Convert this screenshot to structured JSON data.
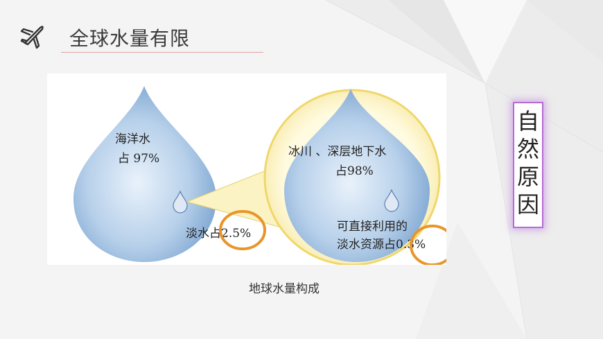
{
  "header": {
    "title": "全球水量有限",
    "icon": "airplane-icon"
  },
  "diagram": {
    "big_drop_line1": "海洋水",
    "big_drop_line2": "占 97%",
    "big_drop_freshwater": "淡水占2.5%",
    "inner_drop_line1": "冰川 、深层地下水",
    "inner_drop_line2": "占98%",
    "inner_drop_usable_line1": "可直接利用的",
    "inner_drop_usable_line2": "淡水资源占0.3%",
    "colors": {
      "drop": "#8db3dc",
      "circle_fill": "#fbf6c8",
      "circle_stroke": "#f0d76a",
      "highlight_ring": "#e8952a"
    }
  },
  "caption": "地球水量构成",
  "cause_box": {
    "text": "自然原因",
    "border_color": "#b36bd0"
  }
}
